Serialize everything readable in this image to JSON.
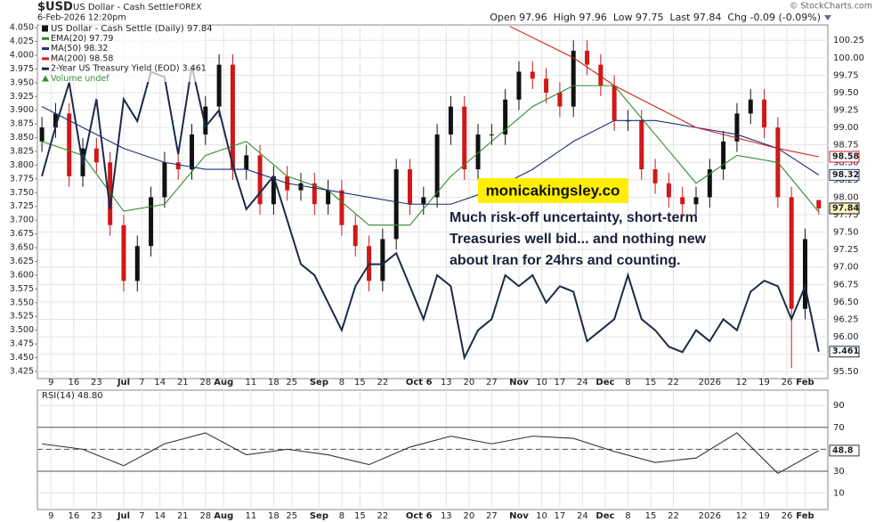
{
  "chart_data": [
    {
      "type": "candlestick",
      "title": "$USD",
      "subtitle": "US Dollar - Cash Settle",
      "exchange": "FOREX",
      "date": "6-Feb-2026 12:20pm",
      "quote": "Open 97.96  High 97.96  Low 97.75  Last 97.84  Chg -0.09 (-0.09%)",
      "credit": "© StockCharts.com",
      "legend_title": "US Dollar - Cash Settle (Daily) 97.84",
      "volume_label": "Volume undef",
      "up_color": "#111111",
      "down_color": "#d01818",
      "last_label": 97.84,
      "x": [
        1,
        4,
        7,
        10,
        13,
        16,
        19,
        22,
        25,
        28,
        31,
        34,
        37,
        40,
        43,
        46,
        49,
        52,
        55,
        58,
        61,
        64,
        67,
        70,
        73,
        76,
        79,
        82,
        85,
        88,
        91,
        94,
        97,
        100,
        103,
        106,
        109,
        112,
        115,
        118,
        121,
        124,
        127,
        130,
        133,
        136,
        139,
        142,
        145,
        148,
        151,
        154,
        157,
        160,
        163,
        166,
        169,
        172
      ],
      "open": [
        98.8,
        99.0,
        99.2,
        98.3,
        98.7,
        98.5,
        97.6,
        96.8,
        97.3,
        98.0,
        98.5,
        98.4,
        98.9,
        99.3,
        99.9,
        98.4,
        98.6,
        97.9,
        98.3,
        98.1,
        98.2,
        97.9,
        98.1,
        97.6,
        97.3,
        96.8,
        97.4,
        98.4,
        97.9,
        98.0,
        98.9,
        99.3,
        98.4,
        98.9,
        98.9,
        99.4,
        99.8,
        99.7,
        99.5,
        99.3,
        100.1,
        99.9,
        99.6,
        99.1,
        99.1,
        98.4,
        98.2,
        98.0,
        97.9,
        98.0,
        98.4,
        98.8,
        99.2,
        99.4,
        99.0,
        98.0,
        96.4,
        97.96
      ],
      "high": [
        99.15,
        99.35,
        99.35,
        98.85,
        98.85,
        98.65,
        97.75,
        97.45,
        98.15,
        98.65,
        98.65,
        99.05,
        99.45,
        100.05,
        100.05,
        98.75,
        98.75,
        98.45,
        98.45,
        98.35,
        98.35,
        98.25,
        98.25,
        97.75,
        97.45,
        97.55,
        98.55,
        98.55,
        98.15,
        99.05,
        99.45,
        99.45,
        99.05,
        99.05,
        99.55,
        99.95,
        99.95,
        99.85,
        99.65,
        100.25,
        100.25,
        100.05,
        99.75,
        99.25,
        99.25,
        98.55,
        98.35,
        98.15,
        98.15,
        98.55,
        98.95,
        99.35,
        99.55,
        99.55,
        99.15,
        98.15,
        97.55,
        97.96
      ],
      "low": [
        98.65,
        98.85,
        98.15,
        98.15,
        98.35,
        97.45,
        96.65,
        96.65,
        97.15,
        97.85,
        98.25,
        98.25,
        98.75,
        99.15,
        98.25,
        98.25,
        97.75,
        97.75,
        97.95,
        97.95,
        97.75,
        97.75,
        97.45,
        97.15,
        96.65,
        96.65,
        97.25,
        97.75,
        97.75,
        97.85,
        98.75,
        98.25,
        98.25,
        98.75,
        98.75,
        99.25,
        99.55,
        99.35,
        99.15,
        99.15,
        99.75,
        99.45,
        98.95,
        98.95,
        98.25,
        98.05,
        97.85,
        97.75,
        97.75,
        97.85,
        98.25,
        98.65,
        99.05,
        98.85,
        97.85,
        95.55,
        96.25,
        97.75
      ],
      "close": [
        99.0,
        99.2,
        98.3,
        98.7,
        98.5,
        97.6,
        96.8,
        97.3,
        98.0,
        98.5,
        98.4,
        98.9,
        99.3,
        99.9,
        98.4,
        98.6,
        97.9,
        98.3,
        98.1,
        98.2,
        97.9,
        98.1,
        97.6,
        97.3,
        96.8,
        97.4,
        98.4,
        97.9,
        98.0,
        98.9,
        99.3,
        98.4,
        98.9,
        98.9,
        99.4,
        99.8,
        99.7,
        99.5,
        99.3,
        100.1,
        99.9,
        99.6,
        99.1,
        99.1,
        98.4,
        98.2,
        98.0,
        97.9,
        98.0,
        98.4,
        98.8,
        99.2,
        99.4,
        99.0,
        98.0,
        96.4,
        97.4,
        97.84
      ],
      "overlays": [
        {
          "name": "EMA(20) 97.79",
          "color": "#2e8b2e",
          "last_label": null,
          "x": [
            1,
            10,
            19,
            28,
            37,
            46,
            55,
            64,
            73,
            82,
            91,
            100,
            109,
            118,
            127,
            136,
            145,
            154,
            163,
            172
          ],
          "values": [
            98.8,
            98.6,
            97.8,
            97.9,
            98.6,
            98.8,
            98.3,
            98.1,
            97.6,
            97.6,
            98.3,
            98.8,
            99.3,
            99.6,
            99.6,
            98.9,
            98.2,
            98.6,
            98.5,
            97.79
          ]
        },
        {
          "name": "MA(50) 98.32",
          "color": "#1f2d7a",
          "last_label": 98.32,
          "x": [
            1,
            10,
            19,
            28,
            37,
            46,
            55,
            64,
            73,
            82,
            91,
            100,
            109,
            118,
            127,
            136,
            145,
            154,
            163,
            172
          ],
          "values": [
            99.3,
            99.0,
            98.7,
            98.5,
            98.4,
            98.4,
            98.2,
            98.1,
            98.0,
            97.9,
            97.9,
            98.1,
            98.4,
            98.8,
            99.1,
            99.1,
            99.0,
            98.9,
            98.7,
            98.32
          ]
        },
        {
          "name": "MA(200) 98.58",
          "color": "#cc2222",
          "last_label": 98.58,
          "x": [
            104,
            118,
            127,
            136,
            145,
            154,
            163,
            172
          ],
          "values": [
            100.45,
            100.0,
            99.6,
            99.3,
            99.0,
            98.85,
            98.7,
            98.58
          ]
        },
        {
          "name": "2-Year US Treasury Yield (EOD) 3.461",
          "color": "#1c2a48",
          "axis": "y2",
          "last_label": 3.461,
          "x": [
            1,
            4,
            7,
            10,
            13,
            16,
            19,
            22,
            25,
            28,
            31,
            34,
            37,
            40,
            43,
            46,
            49,
            52,
            55,
            58,
            61,
            64,
            67,
            70,
            73,
            76,
            79,
            82,
            85,
            88,
            91,
            94,
            97,
            100,
            103,
            106,
            109,
            112,
            115,
            118,
            121,
            124,
            127,
            130,
            133,
            136,
            139,
            142,
            145,
            148,
            151,
            154,
            157,
            160,
            163,
            166,
            169,
            172
          ],
          "values": [
            3.78,
            3.87,
            3.95,
            3.8,
            3.92,
            3.72,
            3.92,
            3.88,
            3.97,
            3.96,
            3.82,
            3.98,
            3.87,
            3.9,
            3.8,
            3.72,
            3.75,
            3.78,
            3.7,
            3.62,
            3.6,
            3.55,
            3.5,
            3.58,
            3.62,
            3.62,
            3.64,
            3.58,
            3.52,
            3.6,
            3.58,
            3.45,
            3.5,
            3.52,
            3.6,
            3.58,
            3.6,
            3.55,
            3.58,
            3.57,
            3.48,
            3.5,
            3.52,
            3.6,
            3.52,
            3.5,
            3.47,
            3.46,
            3.5,
            3.48,
            3.52,
            3.5,
            3.57,
            3.59,
            3.58,
            3.52,
            3.58,
            3.461
          ]
        }
      ],
      "xlim": [
        0,
        174
      ],
      "xticks": [
        {
          "value": 3,
          "label": "9"
        },
        {
          "value": 8,
          "label": "16"
        },
        {
          "value": 13,
          "label": "23"
        },
        {
          "value": 19,
          "label": "Jul"
        },
        {
          "value": 23,
          "label": "7"
        },
        {
          "value": 27,
          "label": "14"
        },
        {
          "value": 32,
          "label": "21"
        },
        {
          "value": 37,
          "label": "28"
        },
        {
          "value": 41,
          "label": "Aug"
        },
        {
          "value": 47,
          "label": "11"
        },
        {
          "value": 52,
          "label": "18"
        },
        {
          "value": 56,
          "label": "25"
        },
        {
          "value": 62,
          "label": "Sep"
        },
        {
          "value": 67,
          "label": "8"
        },
        {
          "value": 71,
          "label": "15"
        },
        {
          "value": 76,
          "label": "22"
        },
        {
          "value": 84,
          "label": "Oct 6"
        },
        {
          "value": 90,
          "label": "13"
        },
        {
          "value": 95,
          "label": "20"
        },
        {
          "value": 100,
          "label": "27"
        },
        {
          "value": 106,
          "label": "Nov"
        },
        {
          "value": 111,
          "label": "10"
        },
        {
          "value": 115,
          "label": "17"
        },
        {
          "value": 120,
          "label": "24"
        },
        {
          "value": 125,
          "label": "Dec"
        },
        {
          "value": 130,
          "label": "8"
        },
        {
          "value": 135,
          "label": "15"
        },
        {
          "value": 140,
          "label": "22"
        },
        {
          "value": 148,
          "label": "2026"
        },
        {
          "value": 155,
          "label": "12"
        },
        {
          "value": 160,
          "label": "19"
        },
        {
          "value": 165,
          "label": "26"
        },
        {
          "value": 169,
          "label": "Feb"
        }
      ],
      "ylim": [
        95.4,
        100.47
      ],
      "yticks": [
        {
          "value": 95.5,
          "label": "95.50"
        },
        95.75,
        {
          "value": 96,
          "label": "96.00"
        },
        96.25,
        {
          "value": 96.5,
          "label": "96.50"
        },
        96.75,
        {
          "value": 97,
          "label": "97.00"
        },
        97.25,
        {
          "value": 97.5,
          "label": "97.50"
        },
        97.75,
        {
          "value": 98,
          "label": "98.00"
        },
        98.25,
        {
          "value": 98.5,
          "label": "98.50"
        },
        98.75,
        {
          "value": 99,
          "label": "99.00"
        },
        99.25,
        {
          "value": 99.5,
          "label": "99.50"
        },
        99.75,
        {
          "value": 100,
          "label": "100.00"
        },
        100.25
      ],
      "y2lim": [
        3.412,
        4.055
      ],
      "y2ticks": [
        3.425,
        {
          "value": 3.45,
          "label": "3.450"
        },
        3.475,
        {
          "value": 3.5,
          "label": "3.500"
        },
        3.525,
        {
          "value": 3.55,
          "label": "3.550"
        },
        3.575,
        {
          "value": 3.6,
          "label": "3.600"
        },
        3.625,
        {
          "value": 3.65,
          "label": "3.650"
        },
        3.675,
        {
          "value": 3.7,
          "label": "3.700"
        },
        3.725,
        {
          "value": 3.75,
          "label": "3.750"
        },
        3.775,
        {
          "value": 3.8,
          "label": "3.800"
        },
        3.825,
        {
          "value": 3.85,
          "label": "3.850"
        },
        3.875,
        {
          "value": 3.9,
          "label": "3.900"
        },
        3.925,
        {
          "value": 3.95,
          "label": "3.950"
        },
        3.975,
        {
          "value": 4,
          "label": "4.000"
        },
        4.025,
        {
          "value": 4.05,
          "label": "4.050"
        }
      ],
      "grid": true,
      "annotations": {
        "badge": "monicakingsley.co",
        "note": [
          "Much risk-off uncertainty, short-term",
          "Treasuries well bid... and nothing new",
          "about Iran for 24hrs and counting."
        ]
      }
    },
    {
      "type": "line",
      "title": "RSI(14) 48.80",
      "color": "#333333",
      "last_label": 48.8,
      "x": [
        1,
        10,
        19,
        28,
        37,
        46,
        55,
        64,
        73,
        82,
        91,
        100,
        109,
        118,
        127,
        136,
        145,
        154,
        163,
        172
      ],
      "values": [
        55,
        50,
        35,
        55,
        65,
        45,
        50,
        45,
        36,
        52,
        62,
        55,
        62,
        60,
        48,
        38,
        42,
        65,
        28,
        48.8
      ],
      "xlim": [
        0,
        174
      ],
      "ylim": [
        -5,
        104
      ],
      "yticks": [
        10,
        30,
        50,
        70,
        90
      ],
      "levels": [
        30,
        70
      ],
      "midline": 50,
      "grid": true
    }
  ]
}
